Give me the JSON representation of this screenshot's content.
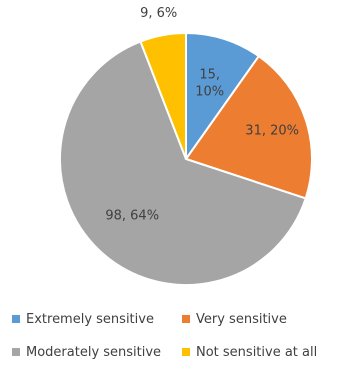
{
  "chart_data": {
    "type": "pie",
    "title": "",
    "slices": [
      {
        "label": "Extremely sensitive",
        "count": 15,
        "percent": "10%",
        "color": "#5b9bd5"
      },
      {
        "label": "Very sensitive",
        "count": 31,
        "percent": "20%",
        "color": "#ed7d31"
      },
      {
        "label": "Moderately sensitive",
        "count": 98,
        "percent": "64%",
        "color": "#a5a5a5"
      },
      {
        "label": "Not sensitive at all",
        "count": 9,
        "percent": "6%",
        "color": "#ffc000"
      }
    ],
    "data_labels": [
      "15, 10%",
      "31, 20%",
      "98, 64%",
      "9, 6%"
    ],
    "legend_position": "bottom"
  }
}
